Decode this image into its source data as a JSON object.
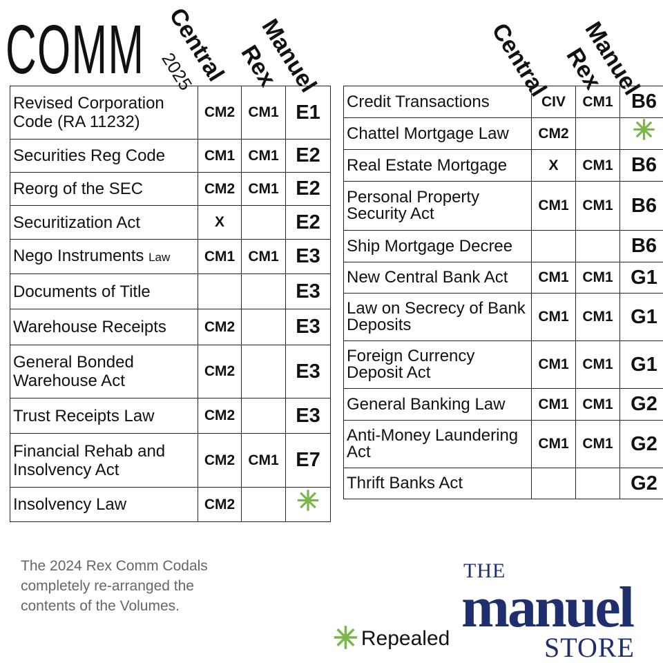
{
  "title": "COMM",
  "left": {
    "headers": {
      "central": "Central",
      "central_year": "2025",
      "rex": "Rex",
      "manuel": "Manuel"
    },
    "rows": [
      {
        "name": "Revised Corporation Code (RA 11232)",
        "central": "CM2",
        "rex": "CM1",
        "manuel": "E1"
      },
      {
        "name": "Securities Reg Code",
        "central": "CM1",
        "rex": "CM1",
        "manuel": "E2"
      },
      {
        "name": "Reorg of the SEC",
        "central": "CM2",
        "rex": "CM1",
        "manuel": "E2"
      },
      {
        "name": "Securitization Act",
        "central": "X",
        "rex": "",
        "manuel": "E2"
      },
      {
        "name": "Nego Instruments",
        "name_suffix": "Law",
        "central": "CM1",
        "rex": "CM1",
        "manuel": "E3"
      },
      {
        "name": "Documents of Title",
        "central": "",
        "rex": "",
        "manuel": "E3"
      },
      {
        "name": "Warehouse Receipts",
        "central": "CM2",
        "rex": "",
        "manuel": "E3"
      },
      {
        "name": "General Bonded Warehouse Act",
        "central": "CM2",
        "rex": "",
        "manuel": "E3"
      },
      {
        "name": "Trust Receipts Law",
        "central": "CM2",
        "rex": "",
        "manuel": "E3"
      },
      {
        "name": "Financial Rehab and Insolvency Act",
        "central": "CM2",
        "rex": "CM1",
        "manuel": "E7"
      },
      {
        "name": "Insolvency Law",
        "central": "CM2",
        "rex": "",
        "manuel": "",
        "repealed": true
      }
    ]
  },
  "right": {
    "headers": {
      "central": "Central",
      "rex": "Rex",
      "manuel": "Manuel"
    },
    "rows": [
      {
        "name": "Credit Transactions",
        "central": "CIV",
        "rex": "CM1",
        "manuel": "B6"
      },
      {
        "name": "Chattel Mortgage Law",
        "central": "CM2",
        "rex": "",
        "manuel": "",
        "repealed": true
      },
      {
        "name": "Real Estate Mortgage",
        "central": "X",
        "rex": "CM1",
        "manuel": "B6"
      },
      {
        "name": "Personal Property Security Act",
        "central": "CM1",
        "rex": "CM1",
        "manuel": "B6"
      },
      {
        "name": "Ship Mortgage Decree",
        "central": "",
        "rex": "",
        "manuel": "B6"
      },
      {
        "name": "New Central Bank Act",
        "central": "CM1",
        "rex": "CM1",
        "manuel": "G1"
      },
      {
        "name": "Law on Secrecy of Bank Deposits",
        "central": "CM1",
        "rex": "CM1",
        "manuel": "G1"
      },
      {
        "name": "Foreign Currency Deposit Act",
        "central": "CM1",
        "rex": "CM1",
        "manuel": "G1"
      },
      {
        "name": "General Banking Law",
        "central": "CM1",
        "rex": "CM1",
        "manuel": "G2"
      },
      {
        "name": "Anti-Money Laundering Act",
        "central": "CM1",
        "rex": "CM1",
        "manuel": "G2"
      },
      {
        "name": "Thrift Banks Act",
        "central": "",
        "rex": "",
        "manuel": "G2"
      }
    ]
  },
  "note": "The 2024 Rex Comm Codals completely re-arranged the contents of the Volumes.",
  "legend": {
    "symbol": "✳",
    "label": "Repealed",
    "color": "#7ab648"
  },
  "logo": {
    "the": "THE",
    "manuel": "manuel",
    "store": "STORE",
    "color": "#1f2f6e"
  }
}
